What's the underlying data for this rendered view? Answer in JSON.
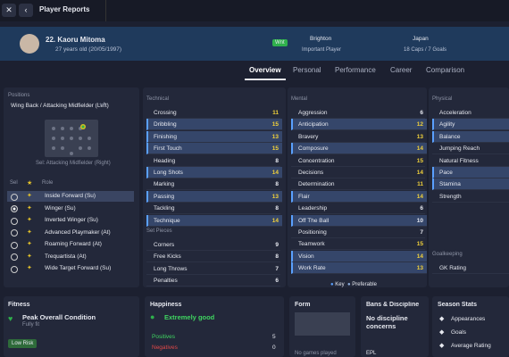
{
  "header": {
    "title": "Player Reports"
  },
  "player": {
    "name": "22. Kaoru Mitoma",
    "age": "27 years old (20/05/1997)",
    "badge": "Wnt",
    "club": "Brighton",
    "club_status": "Important Player",
    "nation": "Japan",
    "caps": "18 Caps / 7 Goals"
  },
  "tabs": [
    "Overview",
    "Personal",
    "Performance",
    "Career",
    "Comparison"
  ],
  "positions": {
    "title": "Positions",
    "main": "Wing Back / Attacking Midfielder (Left)",
    "extra": "+4",
    "selected": "Sel: Attacking Midfielder (Right)",
    "sel_header": "Sel",
    "role_header": "Role",
    "roles": [
      "Inside Forward (Su)",
      "Winger (Su)",
      "Inverted Winger (Su)",
      "Advanced Playmaker (At)",
      "Roaming Forward (At)",
      "Trequartista (At)",
      "Wide Target Forward (Su)"
    ]
  },
  "technical": {
    "title": "Technical",
    "attributes": [
      {
        "name": "Crossing",
        "value": 11
      },
      {
        "name": "Dribbling",
        "value": 15,
        "key": true
      },
      {
        "name": "Finishing",
        "value": 13,
        "key": true
      },
      {
        "name": "First Touch",
        "value": 15,
        "key": true
      },
      {
        "name": "Heading",
        "value": 8
      },
      {
        "name": "Long Shots",
        "value": 14,
        "key": true
      },
      {
        "name": "Marking",
        "value": 8
      },
      {
        "name": "Passing",
        "value": 13,
        "key": true
      },
      {
        "name": "Tackling",
        "value": 8
      },
      {
        "name": "Technique",
        "value": 14,
        "key": true
      }
    ]
  },
  "set_pieces": {
    "title": "Set Pieces",
    "attributes": [
      {
        "name": "Corners",
        "value": 9
      },
      {
        "name": "Free Kicks",
        "value": 8
      },
      {
        "name": "Long Throws",
        "value": 7
      },
      {
        "name": "Penalties",
        "value": 6
      }
    ]
  },
  "mental": {
    "title": "Mental",
    "attributes": [
      {
        "name": "Aggression",
        "value": 6
      },
      {
        "name": "Anticipation",
        "value": 12,
        "key": true
      },
      {
        "name": "Bravery",
        "value": 13
      },
      {
        "name": "Composure",
        "value": 14,
        "key": true
      },
      {
        "name": "Concentration",
        "value": 15
      },
      {
        "name": "Decisions",
        "value": 14
      },
      {
        "name": "Determination",
        "value": 11
      },
      {
        "name": "Flair",
        "value": 14,
        "key": true
      },
      {
        "name": "Leadership",
        "value": 6
      },
      {
        "name": "Off The Ball",
        "value": 10,
        "key": true
      },
      {
        "name": "Positioning",
        "value": 7
      },
      {
        "name": "Teamwork",
        "value": 15
      },
      {
        "name": "Vision",
        "value": 14,
        "key": true
      },
      {
        "name": "Work Rate",
        "value": 13,
        "key": true
      }
    ]
  },
  "physical": {
    "title": "Physical",
    "attributes": [
      {
        "name": "Acceleration"
      },
      {
        "name": "Agility",
        "key": true
      },
      {
        "name": "Balance",
        "key": true
      },
      {
        "name": "Jumping Reach"
      },
      {
        "name": "Natural Fitness"
      },
      {
        "name": "Pace",
        "key": true
      },
      {
        "name": "Stamina",
        "key": true
      },
      {
        "name": "Strength"
      }
    ]
  },
  "goalkeeping": {
    "title": "Goalkeeping",
    "attributes": [
      {
        "name": "GK Rating"
      }
    ]
  },
  "legend": {
    "key": "Key",
    "preferable": "Preferable"
  },
  "fitness": {
    "title": "Fitness",
    "condition": "Peak Overall Condition",
    "status": "Fully fit",
    "risk": "Low Risk"
  },
  "happiness": {
    "title": "Happiness",
    "level": "Extremely good",
    "positives_label": "Positives",
    "positives": 5,
    "negatives_label": "Negatives",
    "negatives": 0
  },
  "form": {
    "title": "Form",
    "note": "No games played"
  },
  "bans": {
    "title": "Bans & Discipline",
    "note": "No discipline concerns",
    "league": "EPL"
  },
  "season_stats": {
    "title": "Season Stats",
    "items": [
      "Appearances",
      "Goals",
      "Average Rating"
    ]
  }
}
